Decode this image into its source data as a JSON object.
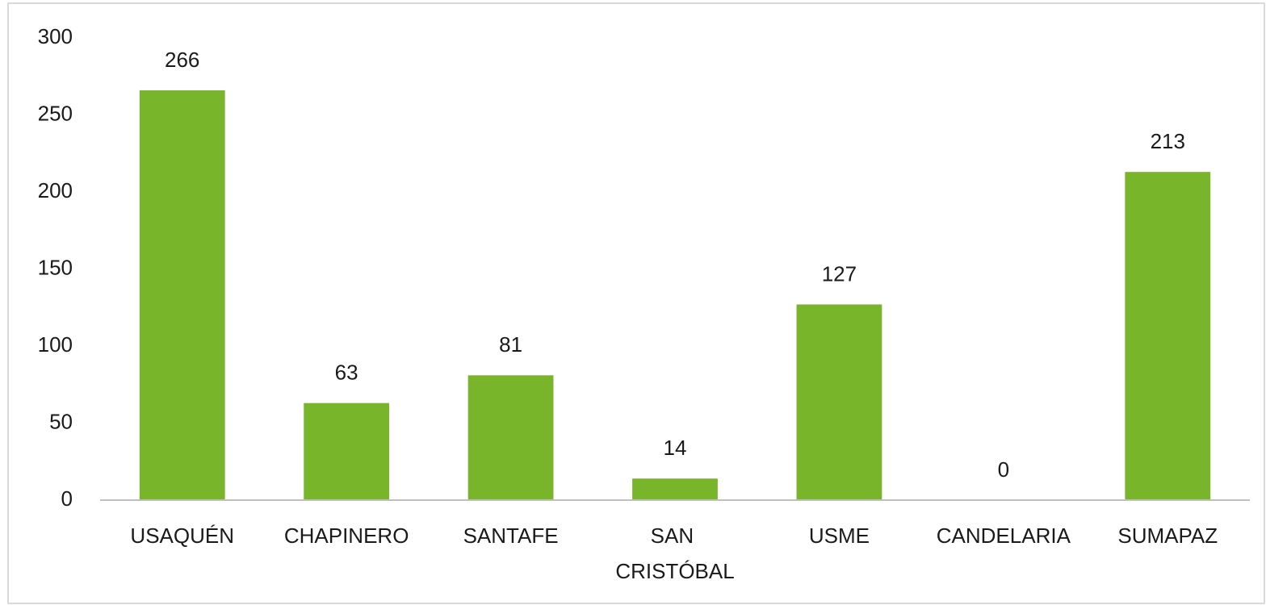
{
  "chart_data": {
    "type": "bar",
    "categories": [
      "USAQUÉN",
      "CHAPINERO",
      "SANTAFE",
      "SAN CRISTÓBAL",
      "USME",
      "CANDELARIA",
      "SUMAPAZ"
    ],
    "values": [
      266,
      63,
      81,
      14,
      127,
      0,
      213
    ],
    "color": "#78b52b",
    "ylim": [
      0,
      300
    ],
    "yticks": [
      0,
      50,
      100,
      150,
      200,
      250,
      300
    ],
    "grid": false,
    "data_labels": true
  }
}
